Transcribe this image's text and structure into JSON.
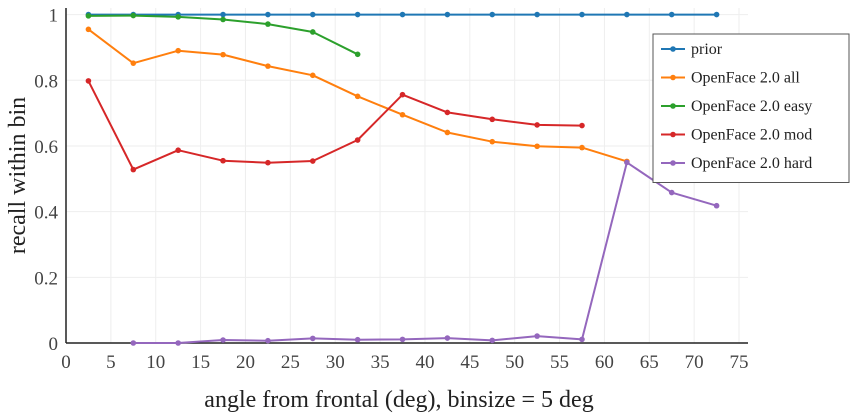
{
  "chart_data": {
    "type": "line",
    "xlabel": "angle from frontal (deg), binsize = 5 deg",
    "ylabel": "recall within bin",
    "xlim": [
      0,
      76
    ],
    "ylim": [
      0,
      1.02
    ],
    "xticks": [
      0,
      5,
      10,
      15,
      20,
      25,
      30,
      35,
      40,
      45,
      50,
      55,
      60,
      65,
      70,
      75
    ],
    "yticks": [
      0,
      0.2,
      0.4,
      0.6,
      0.8,
      1
    ],
    "ytick_labels": [
      "0",
      "0.2",
      "0.4",
      "0.6",
      "0.8",
      "1"
    ],
    "grid": true,
    "legend_position": "top-right",
    "series": [
      {
        "name": "prior",
        "color": "#1f77b4",
        "x": [
          2.5,
          7.5,
          12.5,
          17.5,
          22.5,
          27.5,
          32.5,
          37.5,
          42.5,
          47.5,
          52.5,
          57.5,
          62.5,
          67.5,
          72.5
        ],
        "y": [
          1,
          1,
          1,
          1,
          1,
          1,
          1,
          1,
          1,
          1,
          1,
          1,
          1,
          1,
          1
        ]
      },
      {
        "name": "OpenFace 2.0 all",
        "color": "#ff7f0e",
        "x": [
          2.5,
          7.5,
          12.5,
          17.5,
          22.5,
          27.5,
          32.5,
          37.5,
          42.5,
          47.5,
          52.5,
          57.5,
          62.5
        ],
        "y": [
          0.955,
          0.852,
          0.89,
          0.878,
          0.843,
          0.815,
          0.751,
          0.695,
          0.641,
          0.613,
          0.599,
          0.595,
          0.553
        ]
      },
      {
        "name": "OpenFace 2.0 easy",
        "color": "#2ca02c",
        "x": [
          2.5,
          7.5,
          12.5,
          17.5,
          22.5,
          27.5,
          32.5
        ],
        "y": [
          0.996,
          0.997,
          0.993,
          0.985,
          0.971,
          0.947,
          0.879
        ]
      },
      {
        "name": "OpenFace 2.0 mod",
        "color": "#d62728",
        "x": [
          2.5,
          7.5,
          12.5,
          17.5,
          22.5,
          27.5,
          32.5,
          37.5,
          42.5,
          47.5,
          52.5,
          57.5
        ],
        "y": [
          0.798,
          0.528,
          0.587,
          0.555,
          0.549,
          0.554,
          0.618,
          0.756,
          0.702,
          0.681,
          0.664,
          0.662
        ]
      },
      {
        "name": "OpenFace 2.0 hard",
        "color": "#9467bd",
        "x": [
          7.5,
          12.5,
          17.5,
          22.5,
          27.5,
          32.5,
          37.5,
          42.5,
          47.5,
          52.5,
          57.5,
          62.5,
          67.5,
          72.5
        ],
        "y": [
          0.0,
          0.0,
          0.009,
          0.007,
          0.014,
          0.01,
          0.011,
          0.015,
          0.008,
          0.021,
          0.011,
          0.55,
          0.458,
          0.418
        ]
      }
    ]
  }
}
